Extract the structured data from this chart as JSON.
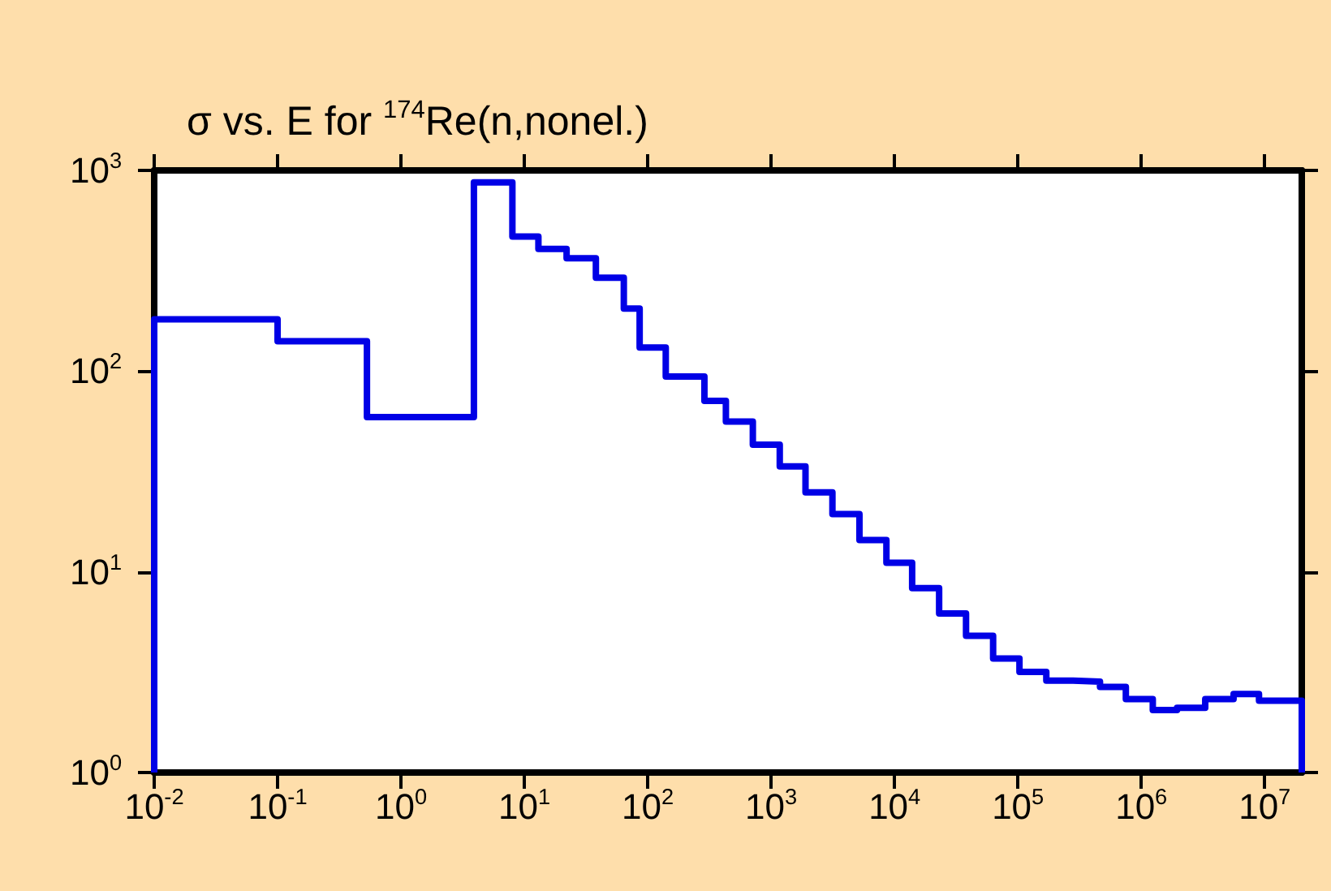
{
  "chart_data": {
    "type": "histogram",
    "title": "σ vs. E for $^{174}$Re(n,nonel.)",
    "bins": [
      0.01,
      0.1,
      0.53,
      3.9,
      8,
      13,
      22,
      38,
      64,
      86,
      140,
      288,
      430,
      711,
      1175,
      1900,
      3140,
      5200,
      8600,
      13900,
      23000,
      38000,
      63000,
      103000,
      170000,
      280000,
      463000,
      750000,
      1240000,
      1950000,
      3300000,
      5600000,
      9000000,
      20000000
    ],
    "values": [
      181,
      141,
      59,
      871,
      468,
      406,
      365,
      292,
      205,
      131,
      94,
      71,
      56,
      43,
      33.5,
      24.9,
      19.4,
      14.4,
      11.1,
      8.3,
      6.2,
      4.8,
      3.7,
      3.17,
      2.87,
      2.84,
      2.67,
      2.32,
      2.05,
      2.1,
      2.32,
      2.46,
      2.28
    ],
    "color": "#0000e6",
    "log": "xy",
    "grid": false,
    "xlim": [
      0.01,
      20000000
    ],
    "ylim": [
      1,
      1000
    ],
    "xticks": [
      {
        "value": 0.01,
        "label": "10$^{-2}$"
      },
      {
        "value": 0.1,
        "label": "10$^{-1}$"
      },
      {
        "value": 1,
        "label": "10$^{0}$"
      },
      {
        "value": 10,
        "label": "10$^{1}$"
      },
      {
        "value": 100,
        "label": "10$^{2}$"
      },
      {
        "value": 1000,
        "label": "10$^{3}$"
      },
      {
        "value": 10000,
        "label": "10$^{4}$"
      },
      {
        "value": 100000,
        "label": "10$^{5}$"
      },
      {
        "value": 1000000,
        "label": "10$^{6}$"
      },
      {
        "value": 10000000,
        "label": "10$^{7}$"
      }
    ],
    "yticks": [
      {
        "value": 1,
        "label": "10$^{0}$"
      },
      {
        "value": 10,
        "label": "10$^{1}$"
      },
      {
        "value": 100,
        "label": "10$^{2}$"
      },
      {
        "value": 1000,
        "label": "10$^{3}$"
      }
    ]
  }
}
